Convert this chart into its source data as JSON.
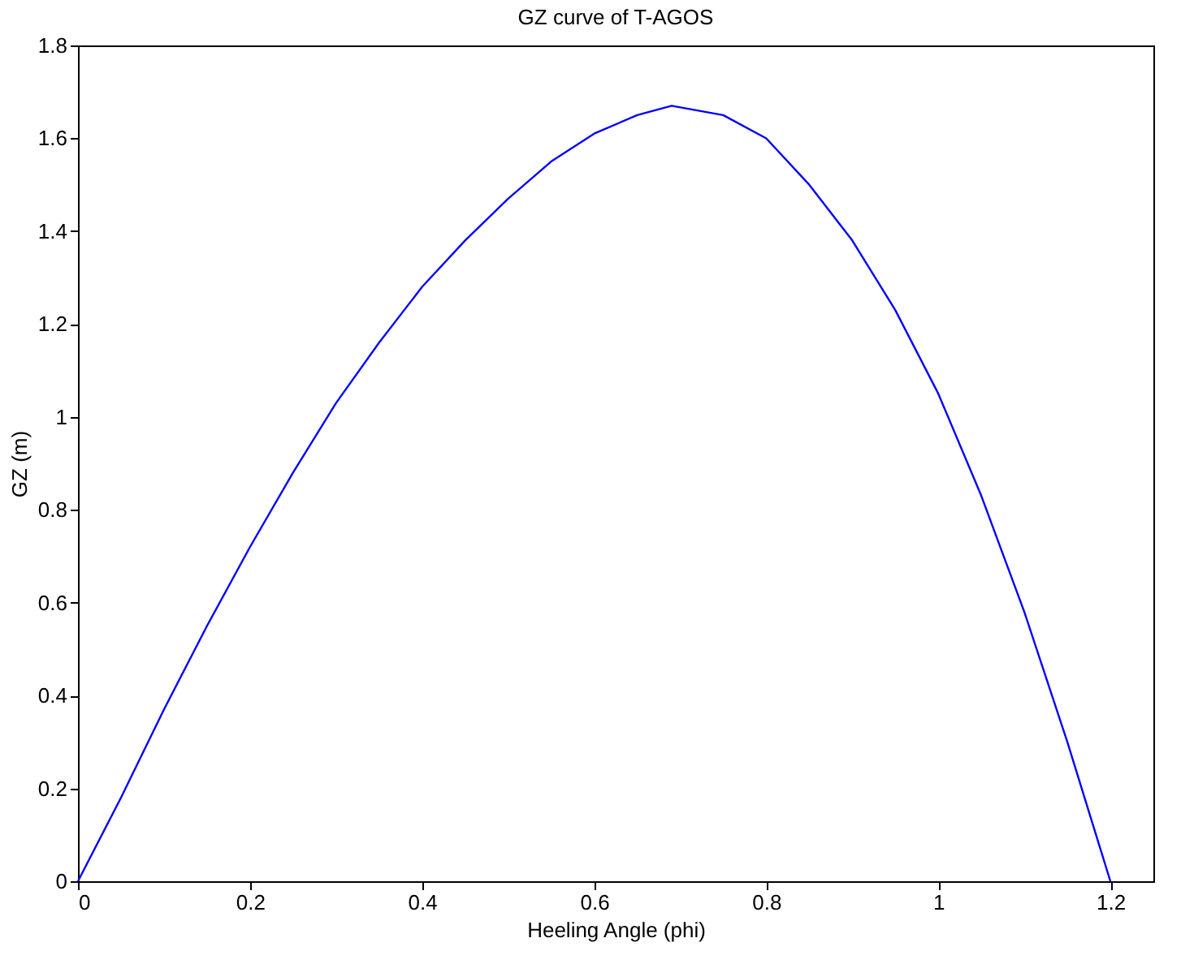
{
  "chart_data": {
    "type": "line",
    "title": "GZ curve of T-AGOS",
    "xlabel": "Heeling Angle (phi)",
    "ylabel": "GZ (m)",
    "x": [
      0,
      0.05,
      0.1,
      0.15,
      0.2,
      0.25,
      0.3,
      0.35,
      0.4,
      0.45,
      0.5,
      0.55,
      0.6,
      0.65,
      0.69,
      0.75,
      0.8,
      0.85,
      0.9,
      0.95,
      1.0,
      1.05,
      1.1,
      1.15,
      1.2
    ],
    "series": [
      {
        "color": "#0000ff",
        "values": [
          0,
          0.18,
          0.37,
          0.55,
          0.72,
          0.88,
          1.03,
          1.16,
          1.28,
          1.38,
          1.47,
          1.55,
          1.61,
          1.65,
          1.67,
          1.65,
          1.6,
          1.5,
          1.38,
          1.23,
          1.05,
          0.83,
          0.58,
          0.3,
          0
        ]
      }
    ],
    "xlim": [
      0,
      1.25
    ],
    "xticks": [
      0,
      0.2,
      0.4,
      0.6,
      0.8,
      1,
      1.2
    ],
    "ylim": [
      0,
      1.8
    ],
    "yticks": [
      0,
      0.2,
      0.4,
      0.6,
      0.8,
      1,
      1.2,
      1.4,
      1.6,
      1.8
    ],
    "grid": false,
    "legend": false,
    "marker": "none",
    "line_style": "solid"
  }
}
